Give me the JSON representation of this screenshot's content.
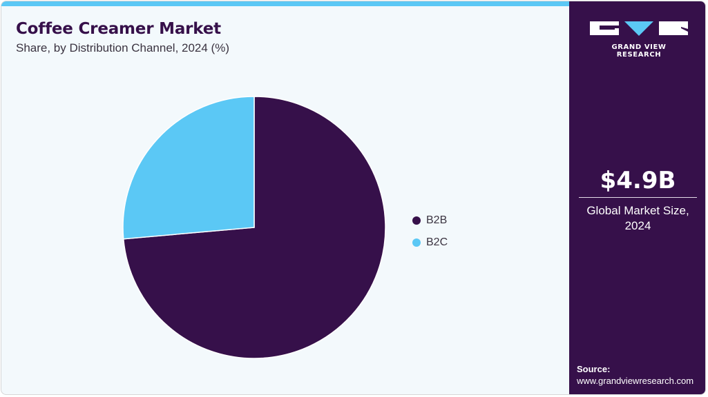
{
  "header": {
    "title": "Coffee Creamer Market",
    "subtitle": "Share, by Distribution Channel, 2024 (%)"
  },
  "colors": {
    "b2b": "#36104a",
    "b2c": "#5bc8f5",
    "accent_bar": "#5bc8f5",
    "sidebar_bg": "#36104a",
    "background": "#f3f9fc"
  },
  "legend": {
    "items": [
      {
        "label": "B2B",
        "color": "#36104a"
      },
      {
        "label": "B2C",
        "color": "#5bc8f5"
      }
    ]
  },
  "sidebar": {
    "brand": "GRAND VIEW RESEARCH",
    "metric_value": "$4.9B",
    "metric_label_line1": "Global Market Size,",
    "metric_label_line2": "2024",
    "source_label": "Source:",
    "source_url": "www.grandviewresearch.com"
  },
  "chart_data": {
    "type": "pie",
    "title": "Coffee Creamer Market",
    "subtitle": "Share, by Distribution Channel, 2024 (%)",
    "categories": [
      "B2B",
      "B2C"
    ],
    "values": [
      73.6,
      26.4
    ],
    "colors": [
      "#36104a",
      "#5bc8f5"
    ],
    "start_angle": "12 o'clock",
    "direction": "clockwise",
    "legend_position": "right",
    "data_labels": false
  }
}
